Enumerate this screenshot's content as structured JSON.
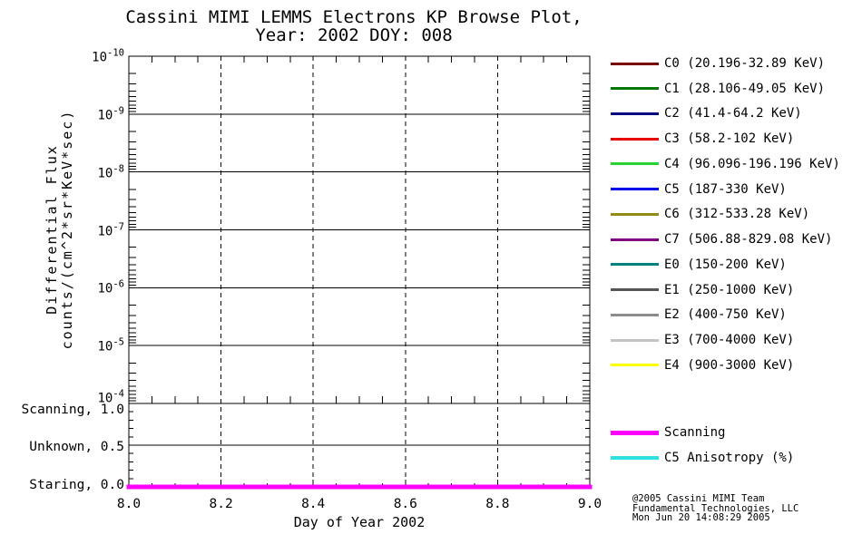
{
  "title": {
    "line1": "Cassini MIMI LEMMS Electrons KP Browse Plot,",
    "line2": "Year: 2002 DOY: 008"
  },
  "credit": {
    "line1": "@2005 Cassini MIMI Team",
    "line2": "Fundamental Technologies, LLC",
    "line3": "Mon Jun 20 14:08:29 2005"
  },
  "colors": {
    "background": "#ffffff",
    "text": "#000000",
    "axis": "#000000"
  },
  "chart_data": {
    "type": "line",
    "title": "Cassini MIMI LEMMS Electrons KP Browse Plot, Year: 2002 DOY: 008",
    "xlabel": "Day of Year 2002",
    "ylabel_line1": "Differential Flux",
    "ylabel_line2": "counts/(cm^2*sr*KeV*sec)",
    "x_range": [
      8.0,
      9.0
    ],
    "x_tick_values": [
      8.0,
      8.2,
      8.4,
      8.6,
      8.8,
      9.0
    ],
    "x_tick_labels": [
      "8.0",
      "8.2",
      "8.4",
      "8.6",
      "8.8",
      "9.0"
    ],
    "x_minor_step": 0.05,
    "y_scale": "log",
    "y_increases_downward": true,
    "y_tick_base": "10",
    "y_tick_exponents": [
      "-10",
      "-9",
      "-8",
      "-7",
      "-6",
      "-5",
      "-4"
    ],
    "grid": {
      "horizontal": "solid",
      "vertical": "dashed"
    },
    "legend_position": "right",
    "flux_series": [
      {
        "name": "C0",
        "label": "C0 (20.196-32.89 KeV)",
        "color": "#7a0000",
        "values": []
      },
      {
        "name": "C1",
        "label": "C1 (28.106-49.05 KeV)",
        "color": "#007800",
        "values": []
      },
      {
        "name": "C2",
        "label": "C2 (41.4-64.2 KeV)",
        "color": "#000080",
        "values": []
      },
      {
        "name": "C3",
        "label": "C3 (58.2-102 KeV)",
        "color": "#e60000",
        "values": []
      },
      {
        "name": "C4",
        "label": "C4 (96.096-196.196 KeV)",
        "color": "#28d232",
        "values": []
      },
      {
        "name": "C5",
        "label": "C5 (187-330 KeV)",
        "color": "#0000eb",
        "values": []
      },
      {
        "name": "C6",
        "label": "C6 (312-533.28 KeV)",
        "color": "#918a14",
        "values": []
      },
      {
        "name": "C7",
        "label": "C7 (506.88-829.08 KeV)",
        "color": "#800080",
        "values": []
      },
      {
        "name": "E0",
        "label": "E0 (150-200 KeV)",
        "color": "#008080",
        "values": []
      },
      {
        "name": "E1",
        "label": "E1 (250-1000 KeV)",
        "color": "#555555",
        "values": []
      },
      {
        "name": "E2",
        "label": "E2 (400-750 KeV)",
        "color": "#8c8c8c",
        "values": []
      },
      {
        "name": "E3",
        "label": "E3 (700-4000 KeV)",
        "color": "#c3c3c3",
        "values": []
      },
      {
        "name": "E4",
        "label": "E4 (900-3000 KeV)",
        "color": "#ffff00",
        "values": []
      }
    ],
    "mode_panel": {
      "levels": [
        {
          "text": "Scanning, 1.0",
          "label": "Scanning",
          "value": 1.0
        },
        {
          "text": "Unknown, 0.5",
          "label": "Unknown",
          "value": 0.5
        },
        {
          "text": "Staring, 0.0",
          "label": "Staring",
          "value": 0.0
        }
      ],
      "minor_step": 0.1,
      "series": {
        "name": "Scanning",
        "color": "#ff00ff",
        "x": [
          8.0,
          9.0
        ],
        "y": [
          0.0,
          0.0
        ],
        "thickness": 5
      }
    },
    "extra_legend": [
      {
        "label": "Scanning",
        "color": "#ff00ff",
        "thickness": 5
      },
      {
        "label": "C5 Anisotropy (%)",
        "color": "#2ee0e0",
        "thickness": 4
      }
    ]
  }
}
